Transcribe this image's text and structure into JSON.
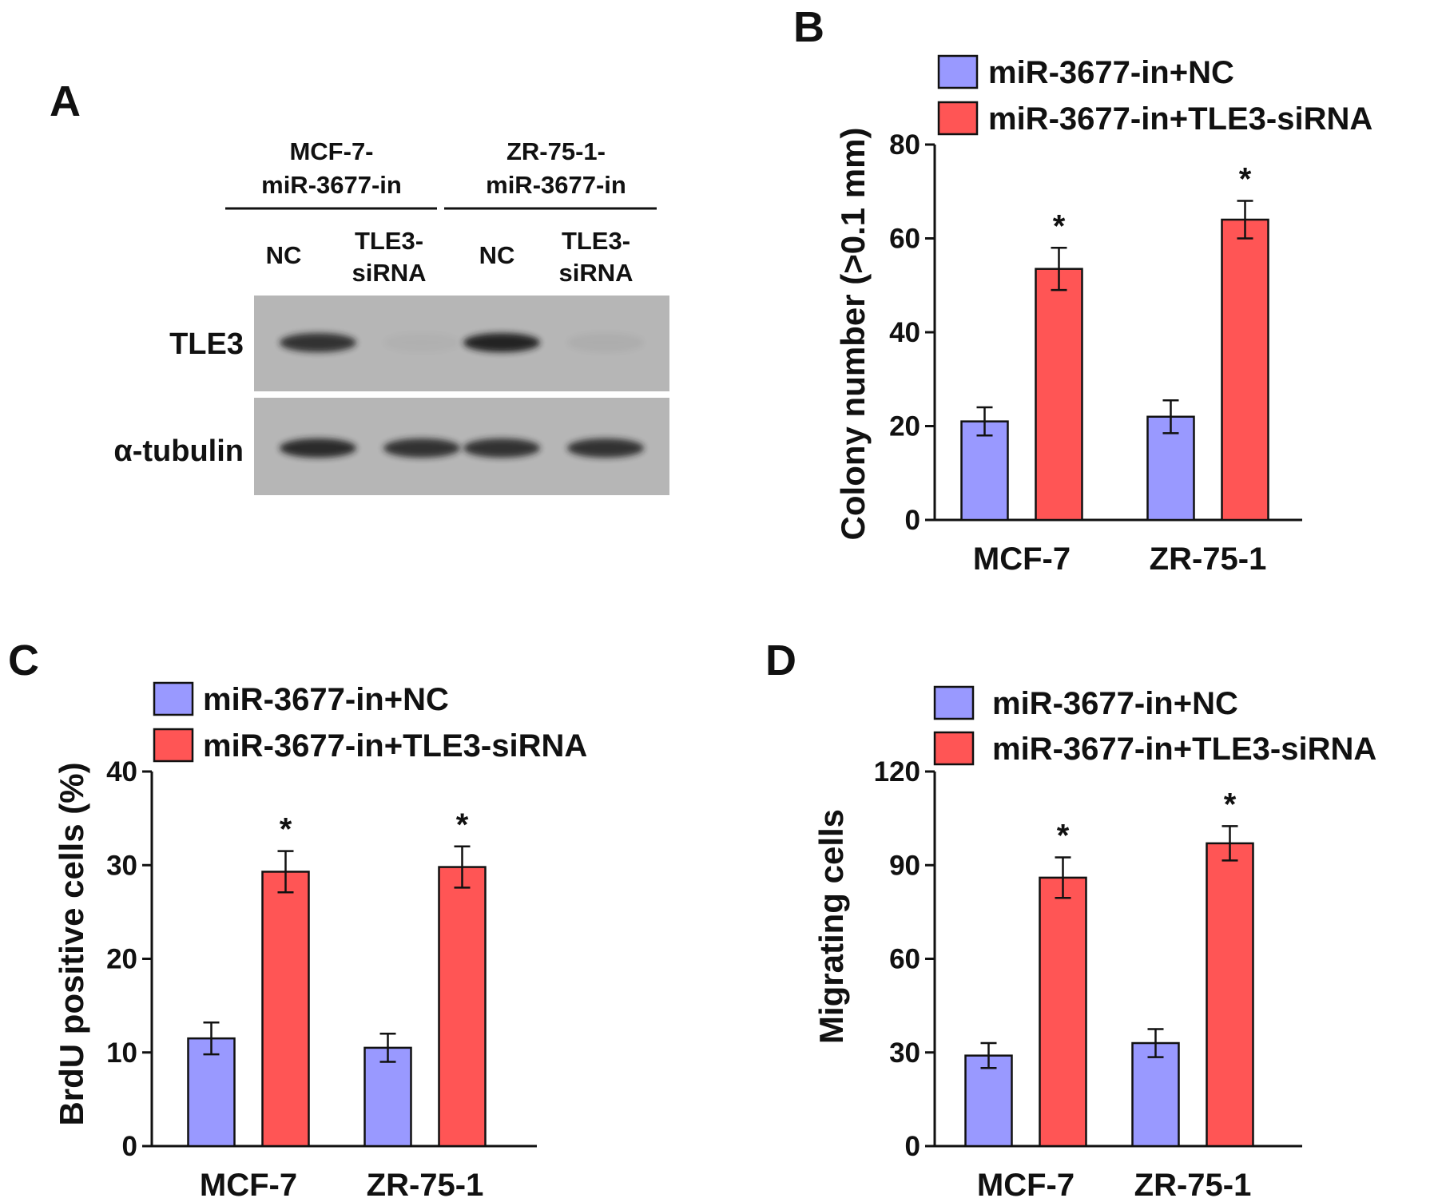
{
  "panels": {
    "a": {
      "letter": "A"
    },
    "b": {
      "letter": "B"
    },
    "c": {
      "letter": "C"
    },
    "d": {
      "letter": "D"
    }
  },
  "western_blot": {
    "group_1_line_1": "MCF-7-",
    "group_1_line_2": "miR-3677-in",
    "group_2_line_1": "ZR-75-1-",
    "group_2_line_2": "miR-3677-in",
    "lanes": [
      {
        "line_1": "NC",
        "line_2": ""
      },
      {
        "line_1": "TLE3-",
        "line_2": "siRNA"
      },
      {
        "line_1": "NC",
        "line_2": ""
      },
      {
        "line_1": "TLE3-",
        "line_2": "siRNA"
      }
    ],
    "rows": [
      "TLE3",
      "α-tubulin"
    ],
    "band_intensity": {
      "TLE3": [
        0.85,
        0.03,
        0.95,
        0.05
      ],
      "α-tubulin": [
        0.9,
        0.85,
        0.85,
        0.85
      ]
    },
    "colors": {
      "background": "#b6b6b6",
      "band": "#1a1a1a"
    }
  },
  "colors": {
    "series_1": "#9999ff",
    "series_2": "#ff5555",
    "axis": "#111111"
  },
  "chart_data": [
    {
      "id": "b",
      "type": "bar",
      "ylabel": "Colony number (>0.1 mm)",
      "xlabel": "",
      "categories": [
        "MCF-7",
        "ZR-75-1"
      ],
      "series": [
        {
          "name": "miR-3677-in+NC",
          "values": [
            21,
            22
          ],
          "errors": [
            3,
            3.5
          ]
        },
        {
          "name": "miR-3677-in+TLE3-siRNA",
          "values": [
            53.5,
            64
          ],
          "errors": [
            4.5,
            4
          ]
        }
      ],
      "significance": [
        "*",
        "*"
      ],
      "ylim": [
        0,
        80
      ],
      "yticks": [
        0,
        20,
        40,
        60,
        80
      ],
      "legend_position": "top"
    },
    {
      "id": "c",
      "type": "bar",
      "ylabel": "BrdU positive cells (%)",
      "xlabel": "",
      "categories": [
        "MCF-7",
        "ZR-75-1"
      ],
      "series": [
        {
          "name": "miR-3677-in+NC",
          "values": [
            11.5,
            10.5
          ],
          "errors": [
            1.7,
            1.5
          ]
        },
        {
          "name": "miR-3677-in+TLE3-siRNA",
          "values": [
            29.3,
            29.8
          ],
          "errors": [
            2.2,
            2.2
          ]
        }
      ],
      "significance": [
        "*",
        "*"
      ],
      "ylim": [
        0,
        40
      ],
      "yticks": [
        0,
        10,
        20,
        30,
        40
      ],
      "legend_position": "top"
    },
    {
      "id": "d",
      "type": "bar",
      "ylabel": "Migrating cells",
      "xlabel": "",
      "categories": [
        "MCF-7",
        "ZR-75-1"
      ],
      "series": [
        {
          "name": "miR-3677-in+NC",
          "values": [
            29,
            33
          ],
          "errors": [
            4,
            4.5
          ]
        },
        {
          "name": "miR-3677-in+TLE3-siRNA",
          "values": [
            86,
            97
          ],
          "errors": [
            6.5,
            5.5
          ]
        }
      ],
      "significance": [
        "*",
        "*"
      ],
      "ylim": [
        0,
        120
      ],
      "yticks": [
        0,
        30,
        60,
        90,
        120
      ],
      "legend_position": "top"
    }
  ]
}
